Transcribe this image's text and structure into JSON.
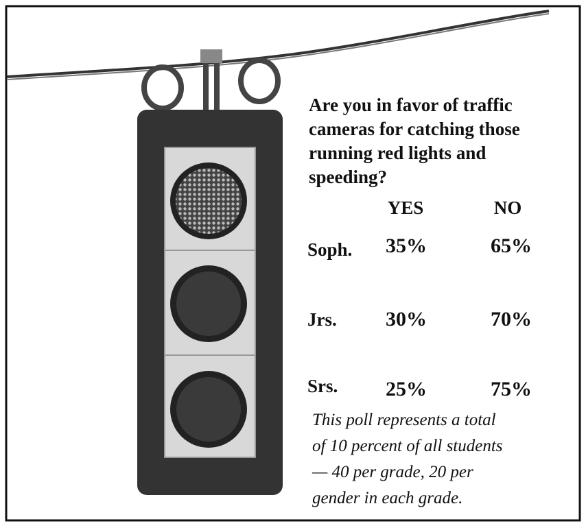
{
  "question": [
    "Are you in favor of traffic",
    "cameras for catching those",
    "running red lights and",
    "speeding?"
  ],
  "table": {
    "columns": [
      "YES",
      "NO"
    ],
    "rows": [
      {
        "label": "Soph.",
        "cells": [
          "35%",
          "65%"
        ]
      },
      {
        "label": "Jrs.",
        "cells": [
          "30%",
          "70%"
        ]
      },
      {
        "label": "Srs.",
        "cells": [
          "25%",
          "75%"
        ]
      }
    ]
  },
  "note": [
    "This poll represents a total",
    "of 10 percent of all students",
    "— 40 per grade, 20 per",
    "gender in each grade."
  ]
}
